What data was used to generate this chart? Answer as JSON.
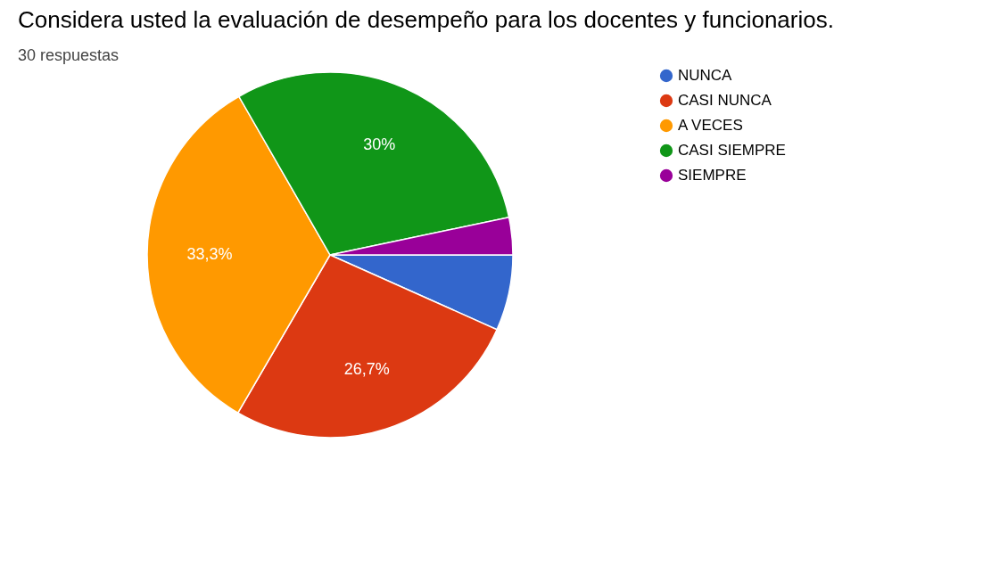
{
  "chart_data": {
    "type": "pie",
    "title": "Considera usted la evaluación de desempeño para los docentes y funcionarios.",
    "subtitle": "30 respuestas",
    "categories": [
      "NUNCA",
      "CASI NUNCA",
      "A VECES",
      "CASI SIEMPRE",
      "SIEMPRE"
    ],
    "values": [
      6.7,
      26.7,
      33.3,
      30,
      3.3
    ],
    "colors": [
      "#3366cc",
      "#dc3912",
      "#ff9900",
      "#109618",
      "#990099"
    ],
    "value_labels": [
      null,
      "26,7%",
      "33,3%",
      "30%",
      null
    ],
    "legend": "right"
  }
}
